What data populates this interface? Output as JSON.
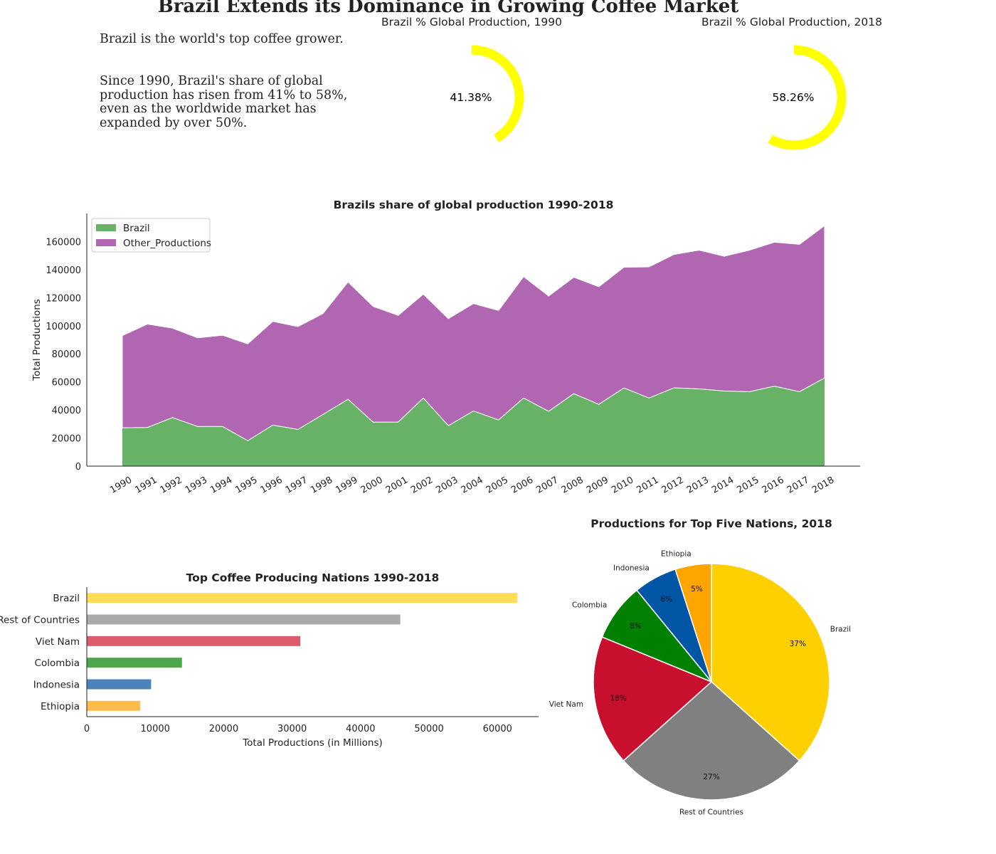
{
  "title": "Brazil Extends its Dominance in Growing Coffee Market",
  "intro": {
    "line1": "Brazil is the world's top coffee grower.",
    "line2": "Since 1990, Brazil's share of global production has risen from 41% to 58%, even as the worldwide market has expanded by over 50%."
  },
  "gauges": [
    {
      "title": "Brazil % Global Production, 1990",
      "value": 41.38,
      "label": "41.38%",
      "color": "#ffff00"
    },
    {
      "title": "Brazil % Global Production, 2018",
      "value": 58.26,
      "label": "58.26%",
      "color": "#ffff00"
    }
  ],
  "chart_data": [
    {
      "type": "area",
      "title": "Brazils share of global production 1990-2018",
      "xlabel": "",
      "ylabel": "Total Productions",
      "ylim": [
        0,
        180000
      ],
      "yticks": [
        0,
        20000,
        40000,
        60000,
        80000,
        100000,
        120000,
        140000,
        160000
      ],
      "ytick_labels": [
        "0",
        "20000",
        "40000",
        "60000",
        "80000",
        "100000",
        "120000",
        "140000",
        "160000"
      ],
      "stacked": true,
      "legend_position": "top-left",
      "x": [
        "1990",
        "1991",
        "1992",
        "1993",
        "1994",
        "1995",
        "1996",
        "1997",
        "1998",
        "1999",
        "2000",
        "2001",
        "2002",
        "2003",
        "2004",
        "2005",
        "2006",
        "2007",
        "2008",
        "2009",
        "2010",
        "2011",
        "2012",
        "2013",
        "2014",
        "2015",
        "2016",
        "2017",
        "2018"
      ],
      "series": [
        {
          "name": "Brazil",
          "color": "#67b266",
          "values": [
            27300,
            27500,
            34600,
            28200,
            28200,
            18100,
            29200,
            26100,
            36800,
            47600,
            31300,
            31400,
            48500,
            28800,
            39300,
            32900,
            48500,
            39000,
            51600,
            44000,
            55700,
            48500,
            55800,
            55000,
            53500,
            53000,
            57000,
            53000,
            62800
          ]
        },
        {
          "name": "Other_Productions",
          "color": "#b066b0",
          "values": [
            65700,
            73700,
            63700,
            63200,
            65000,
            69000,
            73900,
            73300,
            71900,
            83600,
            82500,
            76000,
            74000,
            76300,
            76500,
            78000,
            86500,
            82200,
            83000,
            83800,
            86000,
            93500,
            95000,
            98900,
            96000,
            100800,
            102500,
            105000,
            108500
          ]
        }
      ]
    },
    {
      "type": "bar",
      "orientation": "horizontal",
      "title": "Top Coffee Producing Nations 1990-2018",
      "xlabel": "Total Productions (in Millions)",
      "ylabel": "",
      "xlim": [
        0,
        66000
      ],
      "xticks": [
        0,
        10000,
        20000,
        30000,
        40000,
        50000,
        60000
      ],
      "xtick_labels": [
        "0",
        "10000",
        "20000",
        "30000",
        "40000",
        "50000",
        "60000"
      ],
      "categories": [
        "Brazil",
        "Rest of Countries",
        "Viet Nam",
        "Colombia",
        "Indonesia",
        "Ethiopia"
      ],
      "values": [
        62900,
        45800,
        31200,
        13900,
        9400,
        7800
      ],
      "colors": [
        "#ffdd55",
        "#aaaaaa",
        "#db5a6b",
        "#4ca64c",
        "#4c83bb",
        "#ffbb4c"
      ]
    },
    {
      "type": "pie",
      "title": "Productions for Top Five Nations, 2018",
      "start_angle_deg": 90,
      "direction": "clockwise",
      "slices": [
        {
          "label": "Brazil",
          "value": 37,
          "pct_label": "37%",
          "color": "#ffd000"
        },
        {
          "label": "Rest of Countries",
          "value": 27,
          "pct_label": "27%",
          "color": "#808080"
        },
        {
          "label": "Viet Nam",
          "value": 18,
          "pct_label": "18%",
          "color": "#c8102e"
        },
        {
          "label": "Colombia",
          "value": 8,
          "pct_label": "8%",
          "color": "#008000"
        },
        {
          "label": "Indonesia",
          "value": 6,
          "pct_label": "6%",
          "color": "#0055a4"
        },
        {
          "label": "Ethiopia",
          "value": 5,
          "pct_label": "5%",
          "color": "#ffa500"
        }
      ]
    }
  ]
}
